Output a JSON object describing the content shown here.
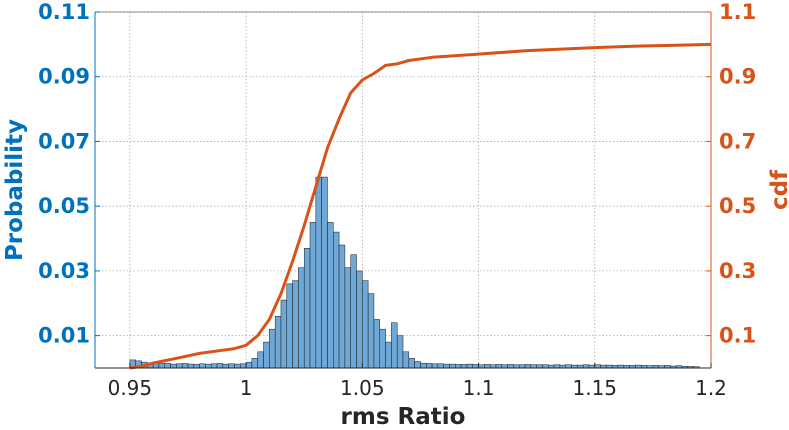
{
  "colors": {
    "left_axis": "#0072BD",
    "right_axis": "#D95319",
    "bar_fill": "#6FA8D6",
    "bar_edge": "#1a1a1a",
    "cdf_line": "#D95319",
    "grid": "#aaaaaa",
    "frame": "#262626"
  },
  "chart_data": {
    "type": "bar",
    "xlabel": "rms Ratio",
    "ylabel_left": "Probability",
    "ylabel_right": "cdf",
    "xlim": [
      0.935,
      1.2
    ],
    "ylim_left": [
      0,
      0.11
    ],
    "ylim_right": [
      0,
      1.1
    ],
    "x_ticks": [
      "0.95",
      "1",
      "1.05",
      "1.1",
      "1.15",
      "1.2"
    ],
    "x_tick_values": [
      0.95,
      1.0,
      1.05,
      1.1,
      1.15,
      1.2
    ],
    "y_left_ticks": [
      "0.01",
      "0.03",
      "0.05",
      "0.07",
      "0.09",
      "0.11"
    ],
    "y_left_tick_values": [
      0.01,
      0.03,
      0.05,
      0.07,
      0.09,
      0.11
    ],
    "y_right_ticks": [
      "0.1",
      "0.3",
      "0.5",
      "0.7",
      "0.9",
      "1.1"
    ],
    "y_right_tick_values": [
      0.1,
      0.3,
      0.5,
      0.7,
      0.9,
      1.1
    ],
    "grid": true,
    "histogram": {
      "x_start": 0.95,
      "bin_width": 0.0025,
      "values": [
        0.0025,
        0.0022,
        0.0018,
        0.0015,
        0.0016,
        0.0015,
        0.0014,
        0.0012,
        0.0013,
        0.0014,
        0.0012,
        0.0011,
        0.0013,
        0.0012,
        0.0013,
        0.0014,
        0.0012,
        0.0013,
        0.0012,
        0.0013,
        0.0018,
        0.003,
        0.005,
        0.008,
        0.012,
        0.016,
        0.021,
        0.026,
        0.027,
        0.031,
        0.037,
        0.045,
        0.059,
        0.059,
        0.045,
        0.042,
        0.038,
        0.031,
        0.035,
        0.03,
        0.027,
        0.023,
        0.015,
        0.012,
        0.008,
        0.014,
        0.01,
        0.005,
        0.003,
        0.002,
        0.0015,
        0.0014,
        0.0013,
        0.0013,
        0.0012,
        0.0012,
        0.0011,
        0.0011,
        0.0012,
        0.0011,
        0.001,
        0.0011,
        0.001,
        0.0011,
        0.001,
        0.0011,
        0.001,
        0.001,
        0.0011,
        0.001,
        0.001,
        0.001,
        0.0009,
        0.001,
        0.0009,
        0.001,
        0.0009,
        0.0009,
        0.001,
        0.0009,
        0.001,
        0.0009,
        0.0009,
        0.0008,
        0.0009,
        0.0008,
        0.0008,
        0.0009,
        0.0008,
        0.0007,
        0.0008,
        0.0007,
        0.0008,
        0.0006,
        0.0007,
        0.0005,
        0.0005,
        0.0004
      ]
    },
    "cdf": {
      "x": [
        0.95,
        0.955,
        0.96,
        0.97,
        0.98,
        0.99,
        0.995,
        1.0,
        1.005,
        1.01,
        1.015,
        1.02,
        1.025,
        1.03,
        1.035,
        1.04,
        1.045,
        1.05,
        1.055,
        1.06,
        1.065,
        1.07,
        1.08,
        1.1,
        1.12,
        1.15,
        1.17,
        1.19,
        1.2
      ],
      "y": [
        0.0,
        0.005,
        0.015,
        0.03,
        0.045,
        0.055,
        0.06,
        0.07,
        0.1,
        0.15,
        0.23,
        0.33,
        0.44,
        0.56,
        0.68,
        0.77,
        0.85,
        0.89,
        0.91,
        0.935,
        0.94,
        0.95,
        0.96,
        0.97,
        0.98,
        0.99,
        0.995,
        0.998,
        1.0
      ]
    }
  }
}
